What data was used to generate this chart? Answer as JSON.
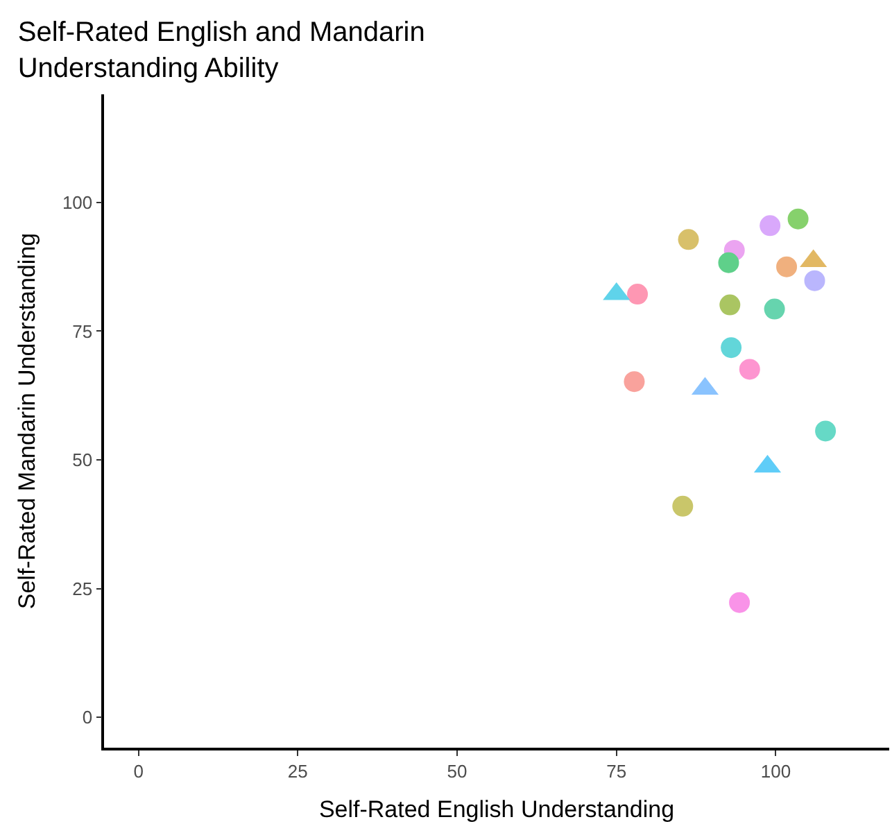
{
  "chart_data": {
    "type": "scatter",
    "title": "Self-Rated English and Mandarin\nUnderstanding Ability",
    "xlabel": "Self-Rated English Understanding",
    "ylabel": "Self-Rated Mandarin Understanding",
    "xlim": [
      -5.4,
      117.8
    ],
    "ylim": [
      -5.9,
      121
    ],
    "xticks": [
      0,
      25,
      50,
      75,
      100
    ],
    "yticks": [
      0,
      25,
      50,
      75,
      100
    ],
    "series": [
      {
        "marker": "circle",
        "x": [
          77.8,
          78.3,
          86.3,
          85.4,
          93.5,
          92.6,
          92.8,
          93.0,
          95.9,
          94.3,
          99.1,
          103.5,
          101.7,
          99.8,
          106.1,
          107.8
        ],
        "values": [
          65.2,
          82.2,
          92.8,
          41.0,
          90.7,
          88.3,
          80.1,
          71.8,
          67.6,
          22.3,
          95.5,
          96.8,
          87.5,
          79.3,
          84.8,
          55.6
        ],
        "colors": [
          "#f9a29c",
          "#fe97b3",
          "#d8c06a",
          "#c9c66a",
          "#eba4f1",
          "#5fd08a",
          "#aac562",
          "#62d6d9",
          "#fd95d0",
          "#f993e8",
          "#d9a8fb",
          "#86d16c",
          "#f0b07e",
          "#66d4ae",
          "#bab6fd",
          "#66d9c6"
        ]
      },
      {
        "marker": "triangle",
        "x": [
          75.0,
          88.9,
          98.7,
          105.9
        ],
        "values": [
          82.2,
          63.8,
          48.7,
          88.6
        ],
        "colors": [
          "#5fd3ea",
          "#8ac3fe",
          "#5fcdf8",
          "#e2b863"
        ]
      }
    ]
  }
}
